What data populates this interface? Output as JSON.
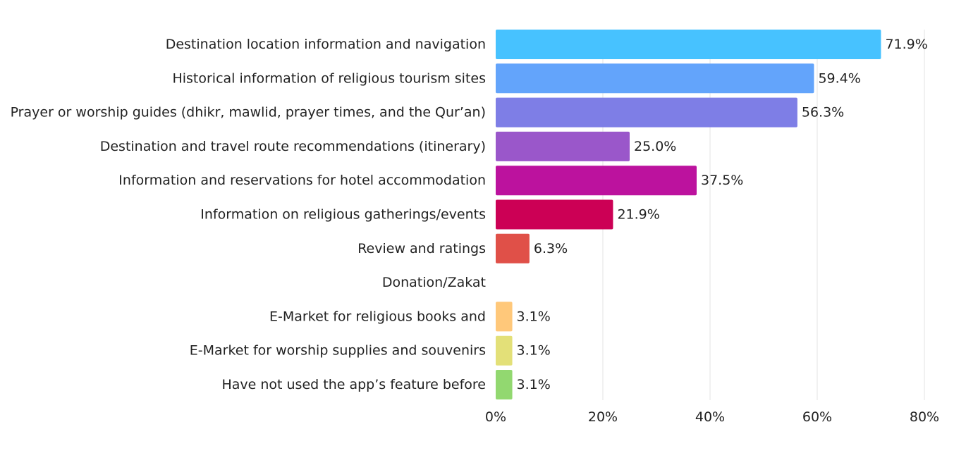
{
  "chart_data": {
    "type": "bar",
    "orientation": "horizontal",
    "categories": [
      "Destination location information and navigation",
      "Historical information of religious tourism sites",
      "Prayer or worship guides (dhikr, mawlid, prayer times, and the Qur’an)",
      "Destination and travel route recommendations (itinerary)",
      "Information and reservations for hotel accommodation",
      "Information on religious gatherings/events",
      "Review and ratings",
      "Donation/Zakat",
      "E-Market for religious books and",
      "E-Market for worship supplies and souvenirs",
      "Have not used the app’s feature before"
    ],
    "values": [
      71.9,
      59.4,
      56.3,
      25.0,
      37.5,
      21.9,
      6.3,
      0,
      3.1,
      3.1,
      3.1
    ],
    "value_labels": [
      "71.9%",
      "59.4%",
      "56.3%",
      "25.0%",
      "37.5%",
      "21.9%",
      "6.3%",
      "",
      "3.1%",
      "3.1%",
      "3.1%"
    ],
    "colors": [
      "#47c2ff",
      "#63a4fb",
      "#7e7ee6",
      "#9a57ca",
      "#bc129e",
      "#cc0055",
      "#e05048",
      "#f5a623",
      "#ffc87a",
      "#e3e078",
      "#92d870"
    ],
    "xlim": [
      0,
      80
    ],
    "xticks": [
      0,
      20,
      40,
      60,
      80
    ],
    "xtick_labels": [
      "0%",
      "20%",
      "40%",
      "60%",
      "80%"
    ],
    "grid": true,
    "title": "",
    "xlabel": "",
    "ylabel": ""
  }
}
